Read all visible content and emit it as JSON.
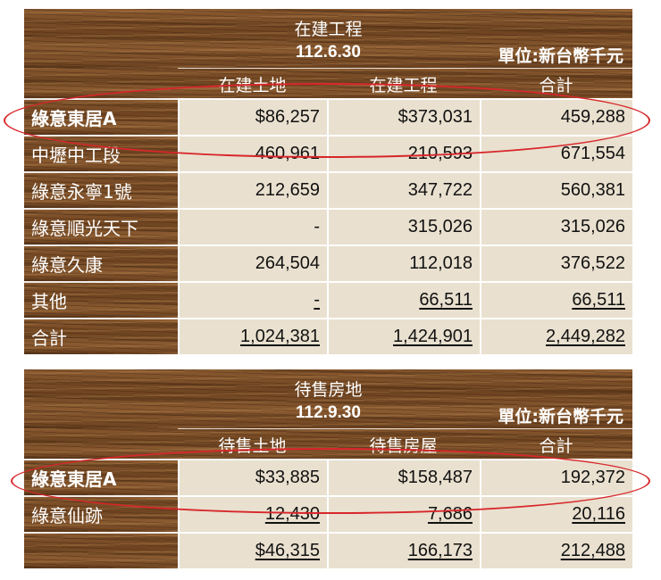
{
  "table1": {
    "title": "在建工程",
    "date": "112.6.30",
    "unit": "單位:新台幣千元",
    "headers": [
      "在建土地",
      "在建工程",
      "合計"
    ],
    "rows": [
      {
        "label": "綠意東居A",
        "v1": "$86,257",
        "v2": "$373,031",
        "v3": "459,288"
      },
      {
        "label": "中壢中工段",
        "v1": "460,961",
        "v2": "210,593",
        "v3": "671,554"
      },
      {
        "label": "綠意永寧1號",
        "v1": "212,659",
        "v2": "347,722",
        "v3": "560,381"
      },
      {
        "label": "綠意順光天下",
        "v1": "-",
        "v2": "315,026",
        "v3": "315,026"
      },
      {
        "label": "綠意久康",
        "v1": "264,504",
        "v2": "112,018",
        "v3": "376,522"
      },
      {
        "label": "其他",
        "v1": "-",
        "v2": "66,511",
        "v3": "66,511"
      },
      {
        "label": "合計",
        "v1": "1,024,381",
        "v2": "1,424,901",
        "v3": "2,449,282"
      }
    ]
  },
  "table2": {
    "title": "待售房地",
    "date": "112.9.30",
    "unit": "單位:新台幣千元",
    "headers": [
      "待售土地",
      "待售房屋",
      "合計"
    ],
    "rows": [
      {
        "label": "綠意東居A",
        "v1": "$33,885",
        "v2": "$158,487",
        "v3": "192,372"
      },
      {
        "label": "綠意仙跡",
        "v1": "12,430",
        "v2": "7,686",
        "v3": "20,116"
      },
      {
        "label": "",
        "v1": "$46,315",
        "v2": "166,173",
        "v3": "212,488"
      }
    ]
  },
  "colors": {
    "highlight_ring": "#d8262a",
    "cell_bg": "#e9e0cf"
  }
}
